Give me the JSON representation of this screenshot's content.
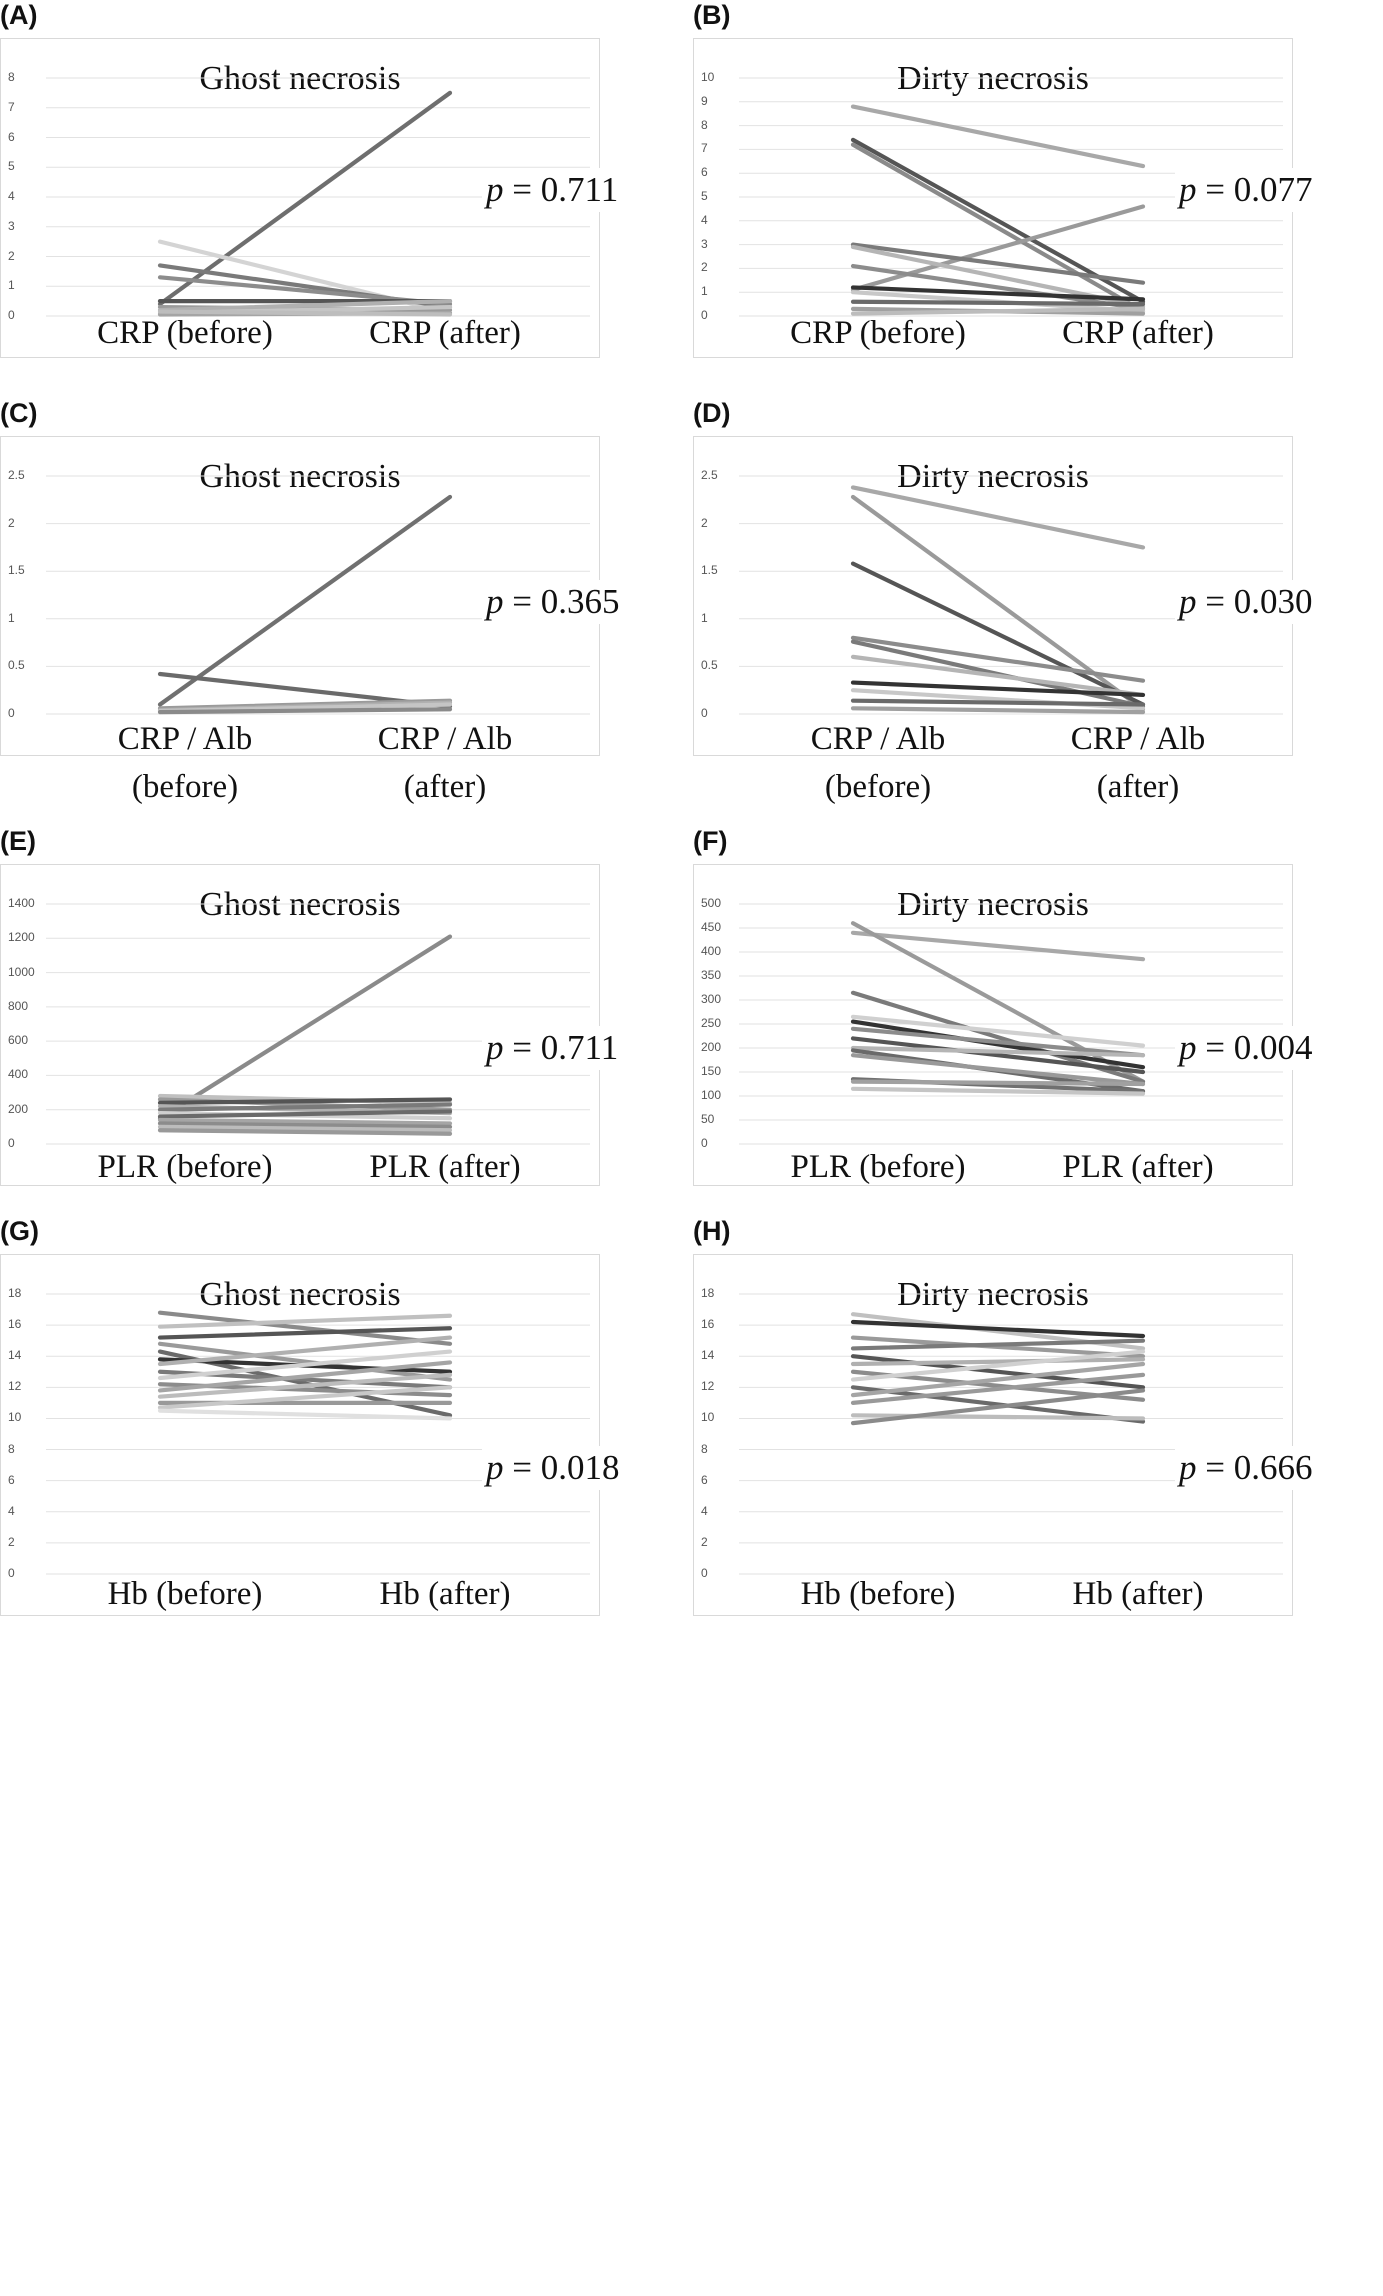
{
  "chart_data": [
    {
      "panel": "(A)",
      "type": "line",
      "title": "Ghost necrosis",
      "categories": [
        "CRP (before)",
        "CRP (after)"
      ],
      "x_tick_lines": [
        [
          "CRP (before)"
        ],
        [
          "CRP (after)"
        ]
      ],
      "ylim": [
        0,
        8
      ],
      "yticks": [
        0,
        1,
        2,
        3,
        4,
        5,
        6,
        7,
        8
      ],
      "p_prefix": "p",
      "p_text": " = 0.711",
      "series": [
        {
          "values": [
            0.4,
            7.5
          ],
          "color": "#6e6e6e"
        },
        {
          "values": [
            2.5,
            0.1
          ],
          "color": "#d4d4d4"
        },
        {
          "values": [
            1.7,
            0.3
          ],
          "color": "#7a7a7a"
        },
        {
          "values": [
            1.3,
            0.4
          ],
          "color": "#8c8c8c"
        },
        {
          "values": [
            0.5,
            0.5
          ],
          "color": "#555555"
        },
        {
          "values": [
            0.3,
            0.2
          ],
          "color": "#9a9a9a"
        },
        {
          "values": [
            0.2,
            0.5
          ],
          "color": "#b0b0b0"
        },
        {
          "values": [
            0.1,
            0.3
          ],
          "color": "#c5c5c5"
        },
        {
          "values": [
            0.05,
            0.1
          ],
          "color": "#a5a5a5"
        },
        {
          "values": [
            0.15,
            0.05
          ],
          "color": "#bdbdbd"
        }
      ]
    },
    {
      "panel": "(B)",
      "type": "line",
      "title": "Dirty necrosis",
      "categories": [
        "CRP (before)",
        "CRP (after)"
      ],
      "x_tick_lines": [
        [
          "CRP (before)"
        ],
        [
          "CRP (after)"
        ]
      ],
      "ylim": [
        0,
        10
      ],
      "yticks": [
        0,
        1,
        2,
        3,
        4,
        5,
        6,
        7,
        8,
        9,
        10
      ],
      "p_prefix": "p",
      "p_text": " = 0.077",
      "series": [
        {
          "values": [
            8.8,
            6.3
          ],
          "color": "#a8a8a8"
        },
        {
          "values": [
            7.4,
            0.6
          ],
          "color": "#555555"
        },
        {
          "values": [
            7.2,
            0.2
          ],
          "color": "#8a8a8a"
        },
        {
          "values": [
            1.1,
            4.6
          ],
          "color": "#9a9a9a"
        },
        {
          "values": [
            3.0,
            1.4
          ],
          "color": "#7a7a7a"
        },
        {
          "values": [
            2.9,
            0.4
          ],
          "color": "#b5b5b5"
        },
        {
          "values": [
            2.1,
            0.3
          ],
          "color": "#8c8c8c"
        },
        {
          "values": [
            1.2,
            0.7
          ],
          "color": "#333333"
        },
        {
          "values": [
            1.0,
            0.2
          ],
          "color": "#c8c8c8"
        },
        {
          "values": [
            0.6,
            0.5
          ],
          "color": "#6a6a6a"
        },
        {
          "values": [
            0.3,
            0.1
          ],
          "color": "#a0a0a0"
        },
        {
          "values": [
            0.1,
            0.3
          ],
          "color": "#bcbcbc"
        }
      ]
    },
    {
      "panel": "(C)",
      "type": "line",
      "title": "Ghost necrosis",
      "categories": [
        "CRP / Alb (before)",
        "CRP / Alb (after)"
      ],
      "x_tick_lines": [
        [
          "CRP / Alb",
          "(before)"
        ],
        [
          "CRP / Alb",
          "(after)"
        ]
      ],
      "ylim": [
        0,
        2.5
      ],
      "yticks": [
        0,
        0.5,
        1,
        1.5,
        2,
        2.5
      ],
      "p_prefix": "p",
      "p_text": " = 0.365",
      "series": [
        {
          "values": [
            0.1,
            2.28
          ],
          "color": "#707070"
        },
        {
          "values": [
            0.42,
            0.08
          ],
          "color": "#6a6a6a"
        },
        {
          "values": [
            0.06,
            0.14
          ],
          "color": "#9a9a9a"
        },
        {
          "values": [
            0.04,
            0.12
          ],
          "color": "#b0b0b0"
        },
        {
          "values": [
            0.03,
            0.1
          ],
          "color": "#c5c5c5"
        },
        {
          "values": [
            0.02,
            0.05
          ],
          "color": "#8a8a8a"
        }
      ]
    },
    {
      "panel": "(D)",
      "type": "line",
      "title": "Dirty necrosis",
      "categories": [
        "CRP / Alb (before)",
        "CRP / Alb (after)"
      ],
      "x_tick_lines": [
        [
          "CRP / Alb",
          "(before)"
        ],
        [
          "CRP / Alb",
          "(after)"
        ]
      ],
      "ylim": [
        0,
        2.5
      ],
      "yticks": [
        0,
        0.5,
        1,
        1.5,
        2,
        2.5
      ],
      "p_prefix": "p",
      "p_text": " = 0.030",
      "series": [
        {
          "values": [
            2.38,
            1.75
          ],
          "color": "#a8a8a8"
        },
        {
          "values": [
            2.28,
            0.05
          ],
          "color": "#9a9a9a"
        },
        {
          "values": [
            1.58,
            0.1
          ],
          "color": "#555555"
        },
        {
          "values": [
            0.8,
            0.35
          ],
          "color": "#8c8c8c"
        },
        {
          "values": [
            0.76,
            0.08
          ],
          "color": "#7a7a7a"
        },
        {
          "values": [
            0.6,
            0.2
          ],
          "color": "#b5b5b5"
        },
        {
          "values": [
            0.33,
            0.2
          ],
          "color": "#333333"
        },
        {
          "values": [
            0.25,
            0.06
          ],
          "color": "#c8c8c8"
        },
        {
          "values": [
            0.14,
            0.1
          ],
          "color": "#6a6a6a"
        },
        {
          "values": [
            0.06,
            0.02
          ],
          "color": "#a0a0a0"
        }
      ]
    },
    {
      "panel": "(E)",
      "type": "line",
      "title": "Ghost necrosis",
      "categories": [
        "PLR (before)",
        "PLR (after)"
      ],
      "x_tick_lines": [
        [
          "PLR (before)"
        ],
        [
          "PLR (after)"
        ]
      ],
      "ylim": [
        0,
        1400
      ],
      "yticks": [
        0,
        200,
        400,
        600,
        800,
        1000,
        1200,
        1400
      ],
      "p_prefix": "p",
      "p_text": " = 0.711",
      "series": [
        {
          "values": [
            150,
            1210
          ],
          "color": "#8a8a8a"
        },
        {
          "values": [
            280,
            240
          ],
          "color": "#c0c0c0"
        },
        {
          "values": [
            260,
            200
          ],
          "color": "#9a9a9a"
        },
        {
          "values": [
            240,
            260
          ],
          "color": "#555555"
        },
        {
          "values": [
            220,
            180
          ],
          "color": "#b0b0b0"
        },
        {
          "values": [
            200,
            230
          ],
          "color": "#7a7a7a"
        },
        {
          "values": [
            180,
            150
          ],
          "color": "#d0d0d0"
        },
        {
          "values": [
            160,
            190
          ],
          "color": "#6a6a6a"
        },
        {
          "values": [
            140,
            120
          ],
          "color": "#a5a5a5"
        },
        {
          "values": [
            120,
            100
          ],
          "color": "#8c8c8c"
        },
        {
          "values": [
            100,
            80
          ],
          "color": "#bcbcbc"
        },
        {
          "values": [
            80,
            60
          ],
          "color": "#999999"
        }
      ]
    },
    {
      "panel": "(F)",
      "type": "line",
      "title": "Dirty necrosis",
      "categories": [
        "PLR (before)",
        "PLR (after)"
      ],
      "x_tick_lines": [
        [
          "PLR (before)"
        ],
        [
          "PLR (after)"
        ]
      ],
      "ylim": [
        0,
        500
      ],
      "yticks": [
        0,
        50,
        100,
        150,
        200,
        250,
        300,
        350,
        400,
        450,
        500
      ],
      "p_prefix": "p",
      "p_text": " = 0.004",
      "series": [
        {
          "values": [
            440,
            385
          ],
          "color": "#a8a8a8"
        },
        {
          "values": [
            460,
            130
          ],
          "color": "#9a9a9a"
        },
        {
          "values": [
            315,
            130
          ],
          "color": "#7a7a7a"
        },
        {
          "values": [
            265,
            205
          ],
          "color": "#d0d0d0"
        },
        {
          "values": [
            255,
            160
          ],
          "color": "#333333"
        },
        {
          "values": [
            240,
            185
          ],
          "color": "#8c8c8c"
        },
        {
          "values": [
            220,
            150
          ],
          "color": "#555555"
        },
        {
          "values": [
            200,
            185
          ],
          "color": "#b5b5b5"
        },
        {
          "values": [
            195,
            110
          ],
          "color": "#6a6a6a"
        },
        {
          "values": [
            185,
            125
          ],
          "color": "#999999"
        },
        {
          "values": [
            135,
            110
          ],
          "color": "#707070"
        },
        {
          "values": [
            130,
            125
          ],
          "color": "#a0a0a0"
        },
        {
          "values": [
            115,
            105
          ],
          "color": "#c5c5c5"
        }
      ]
    },
    {
      "panel": "(G)",
      "type": "line",
      "title": "Ghost necrosis",
      "categories": [
        "Hb (before)",
        "Hb (after)"
      ],
      "x_tick_lines": [
        [
          "Hb (before)"
        ],
        [
          "Hb (after)"
        ]
      ],
      "ylim": [
        0,
        18
      ],
      "yticks": [
        0,
        2,
        4,
        6,
        8,
        10,
        12,
        14,
        16,
        18
      ],
      "p_prefix": "p",
      "p_text": " = 0.018",
      "series": [
        {
          "values": [
            16.8,
            14.8
          ],
          "color": "#8a8a8a"
        },
        {
          "values": [
            15.9,
            16.6
          ],
          "color": "#c0c0c0"
        },
        {
          "values": [
            15.2,
            15.8
          ],
          "color": "#555555"
        },
        {
          "values": [
            14.8,
            12.5
          ],
          "color": "#9a9a9a"
        },
        {
          "values": [
            14.3,
            10.2
          ],
          "color": "#6a6a6a"
        },
        {
          "values": [
            13.8,
            13.0
          ],
          "color": "#333333"
        },
        {
          "values": [
            13.5,
            15.2
          ],
          "color": "#b0b0b0"
        },
        {
          "values": [
            13.0,
            12.0
          ],
          "color": "#7a7a7a"
        },
        {
          "values": [
            12.6,
            14.3
          ],
          "color": "#d0d0d0"
        },
        {
          "values": [
            12.2,
            11.5
          ],
          "color": "#8c8c8c"
        },
        {
          "values": [
            11.8,
            13.6
          ],
          "color": "#a5a5a5"
        },
        {
          "values": [
            11.4,
            12.8
          ],
          "color": "#bcbcbc"
        },
        {
          "values": [
            11.0,
            11.0
          ],
          "color": "#999999"
        },
        {
          "values": [
            10.7,
            12.0
          ],
          "color": "#c8c8c8"
        },
        {
          "values": [
            10.5,
            10.0
          ],
          "color": "#e0e0e0"
        }
      ]
    },
    {
      "panel": "(H)",
      "type": "line",
      "title": "Dirty necrosis",
      "categories": [
        "Hb (before)",
        "Hb (after)"
      ],
      "x_tick_lines": [
        [
          "Hb (before)"
        ],
        [
          "Hb (after)"
        ]
      ],
      "ylim": [
        0,
        18
      ],
      "yticks": [
        0,
        2,
        4,
        6,
        8,
        10,
        12,
        14,
        16,
        18
      ],
      "p_prefix": "p",
      "p_text": " = 0.666",
      "series": [
        {
          "values": [
            16.7,
            14.5
          ],
          "color": "#c0c0c0"
        },
        {
          "values": [
            16.2,
            15.3
          ],
          "color": "#333333"
        },
        {
          "values": [
            15.2,
            14.0
          ],
          "color": "#9a9a9a"
        },
        {
          "values": [
            14.5,
            15.0
          ],
          "color": "#7a7a7a"
        },
        {
          "values": [
            14.0,
            12.0
          ],
          "color": "#555555"
        },
        {
          "values": [
            13.5,
            13.8
          ],
          "color": "#b0b0b0"
        },
        {
          "values": [
            13.0,
            11.2
          ],
          "color": "#8c8c8c"
        },
        {
          "values": [
            12.5,
            14.3
          ],
          "color": "#d0d0d0"
        },
        {
          "values": [
            12.0,
            9.8
          ],
          "color": "#6a6a6a"
        },
        {
          "values": [
            11.5,
            13.5
          ],
          "color": "#a5a5a5"
        },
        {
          "values": [
            11.0,
            12.8
          ],
          "color": "#999999"
        },
        {
          "values": [
            10.2,
            10.0
          ],
          "color": "#bcbcbc"
        },
        {
          "values": [
            9.7,
            11.8
          ],
          "color": "#8a8a8a"
        }
      ]
    }
  ]
}
